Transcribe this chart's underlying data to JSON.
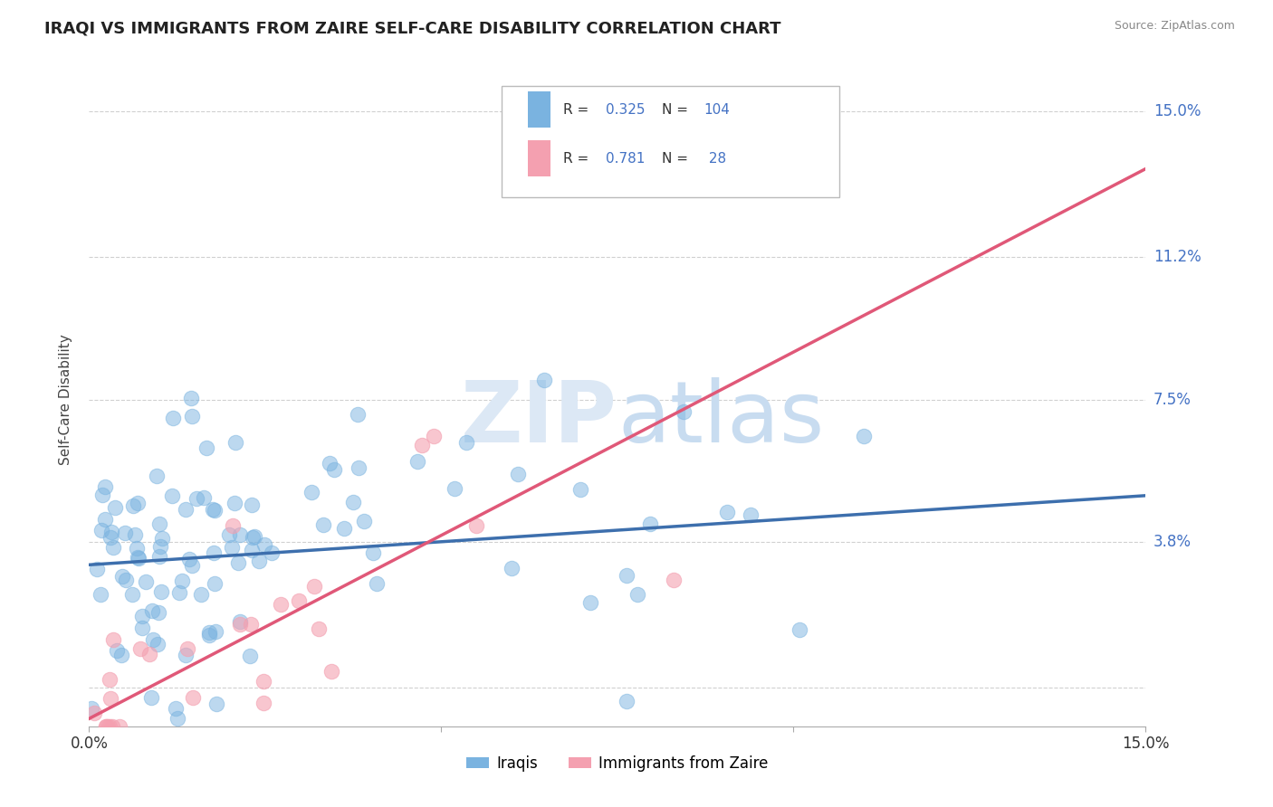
{
  "title": "IRAQI VS IMMIGRANTS FROM ZAIRE SELF-CARE DISABILITY CORRELATION CHART",
  "source": "Source: ZipAtlas.com",
  "ylabel": "Self-Care Disability",
  "xmin": 0.0,
  "xmax": 0.15,
  "ymin": -0.01,
  "ymax": 0.16,
  "yticks": [
    0.0,
    0.038,
    0.075,
    0.112,
    0.15
  ],
  "ytick_labels": [
    "",
    "3.8%",
    "7.5%",
    "11.2%",
    "15.0%"
  ],
  "color_iraqi": "#7ab3e0",
  "color_zaire": "#f4a0b0",
  "color_line_iraqi": "#3d6fad",
  "color_line_zaire": "#e05878",
  "color_r_value": "#4472C4",
  "color_grid": "#d0d0d0",
  "watermark_color": "#dce8f5",
  "background_color": "#ffffff",
  "blue_line_x0": 0.0,
  "blue_line_y0": 0.032,
  "blue_line_x1": 0.15,
  "blue_line_y1": 0.05,
  "pink_line_x0": 0.0,
  "pink_line_y0": -0.008,
  "pink_line_x1": 0.15,
  "pink_line_y1": 0.135,
  "iraqi_seed": 123,
  "zaire_seed": 456
}
